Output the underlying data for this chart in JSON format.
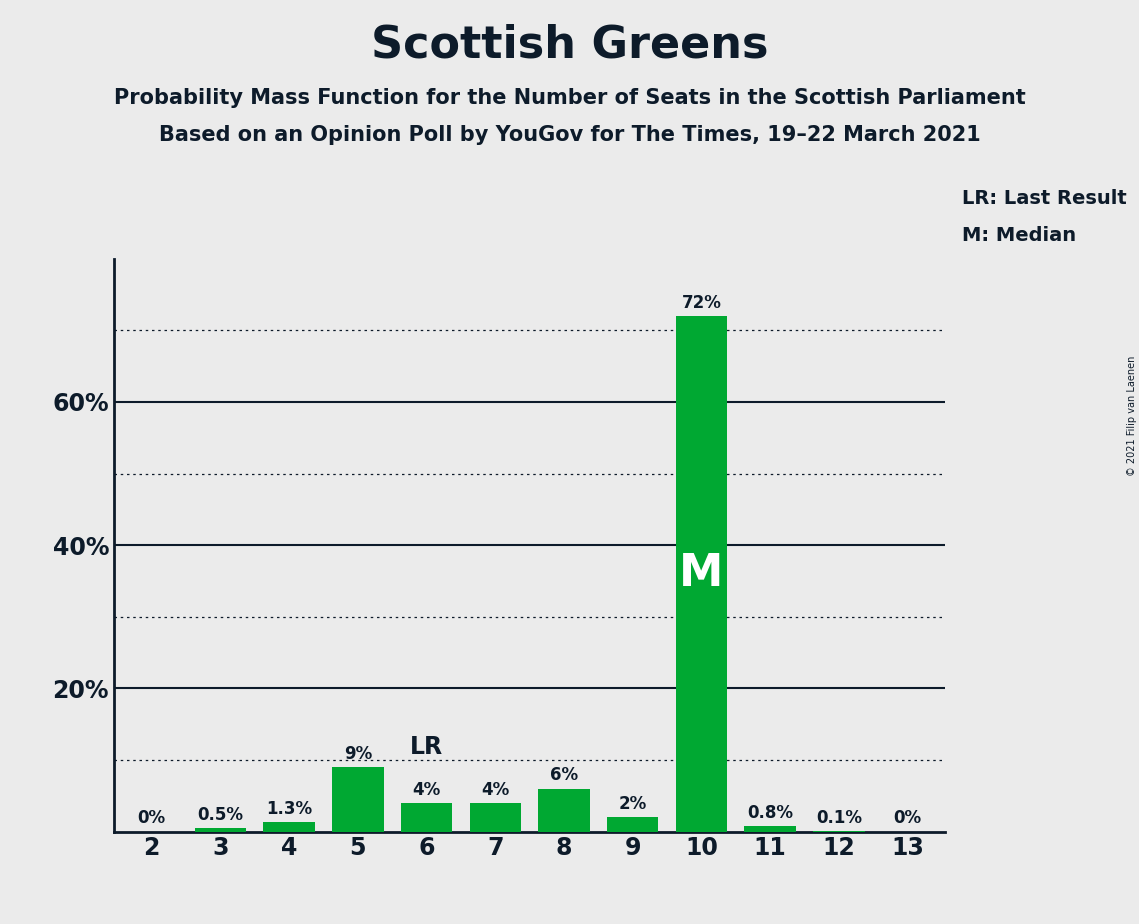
{
  "title": "Scottish Greens",
  "subtitle1": "Probability Mass Function for the Number of Seats in the Scottish Parliament",
  "subtitle2": "Based on an Opinion Poll by YouGov for The Times, 19–22 March 2021",
  "copyright": "© 2021 Filip van Laenen",
  "categories": [
    2,
    3,
    4,
    5,
    6,
    7,
    8,
    9,
    10,
    11,
    12,
    13
  ],
  "values": [
    0.0,
    0.5,
    1.3,
    9.0,
    4.0,
    4.0,
    6.0,
    2.0,
    72.0,
    0.8,
    0.1,
    0.0
  ],
  "labels": [
    "0%",
    "0.5%",
    "1.3%",
    "9%",
    "4%",
    "4%",
    "6%",
    "2%",
    "72%",
    "0.8%",
    "0.1%",
    "0%"
  ],
  "bar_color": "#00a832",
  "background_color": "#ebebeb",
  "text_color": "#0d1b2a",
  "median_bar": 10,
  "lr_bar": 6,
  "ylim": [
    0,
    80
  ],
  "yticks": [
    20,
    40,
    60
  ],
  "ytick_labels": [
    "20%",
    "40%",
    "60%"
  ],
  "dotted_lines": [
    10,
    30,
    50,
    70
  ],
  "solid_lines": [
    20,
    40,
    60
  ],
  "legend_lr": "LR: Last Result",
  "legend_m": "M: Median"
}
